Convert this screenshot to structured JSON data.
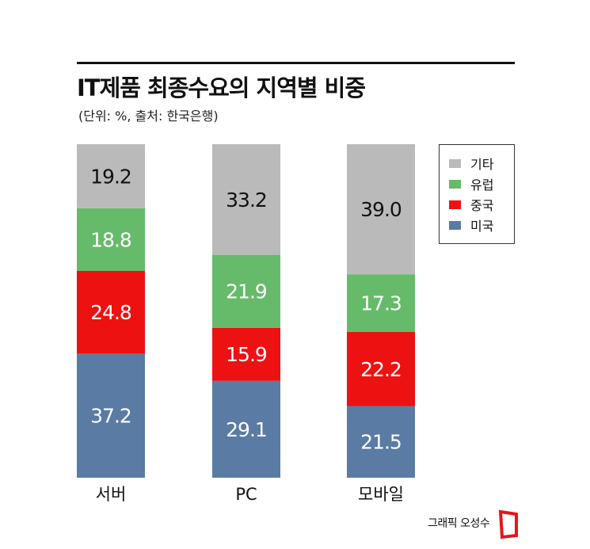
{
  "title": "IT제품 최종수요의 지역별 비중",
  "subtitle": "(단위: %, 출처: 한국은행)",
  "credit": "그래픽 오성수",
  "colors": {
    "기타": "#bababa",
    "유럽": "#66bb6a",
    "중국": "#ee1111",
    "미국": "#5a7ba3"
  },
  "legend": [
    "기타",
    "유럽",
    "중국",
    "미국"
  ],
  "chart_data": {
    "type": "bar",
    "stacked": true,
    "normalized": true,
    "categories": [
      "서버",
      "PC",
      "모바일"
    ],
    "series": [
      {
        "name": "미국",
        "values": [
          37.2,
          29.1,
          21.5
        ]
      },
      {
        "name": "중국",
        "values": [
          24.8,
          15.9,
          22.2
        ]
      },
      {
        "name": "유럽",
        "values": [
          18.8,
          21.9,
          17.3
        ]
      },
      {
        "name": "기타",
        "values": [
          19.2,
          33.2,
          39.0
        ]
      }
    ],
    "ylim": [
      0,
      100
    ],
    "legend_position": "top-right"
  }
}
